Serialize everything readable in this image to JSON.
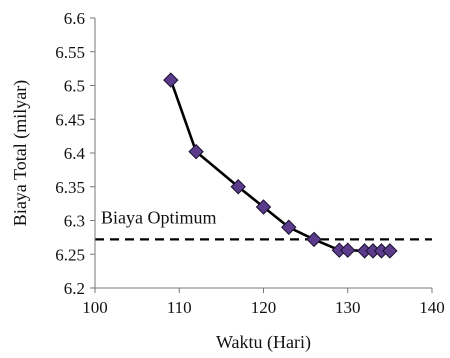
{
  "chart_data": {
    "type": "line",
    "title": "",
    "xlabel": "Waktu (Hari)",
    "ylabel": "Biaya Total (milyar)",
    "xlim": [
      100,
      140
    ],
    "ylim": [
      6.2,
      6.6
    ],
    "x_ticks": [
      "100",
      "110",
      "120",
      "130",
      "140"
    ],
    "y_ticks": [
      "6.2",
      "6.25",
      "6.3",
      "6.35",
      "6.4",
      "6.45",
      "6.5",
      "6.55",
      "6.6"
    ],
    "grid": false,
    "legend": "none",
    "series": [
      {
        "marker": "diamond",
        "marker_color": "#5b3c8a",
        "line_color": "#000000",
        "points": [
          {
            "x": 109,
            "y": 6.508
          },
          {
            "x": 112,
            "y": 6.402
          },
          {
            "x": 117,
            "y": 6.35
          },
          {
            "x": 120,
            "y": 6.32
          },
          {
            "x": 123,
            "y": 6.29
          },
          {
            "x": 126,
            "y": 6.272
          },
          {
            "x": 129,
            "y": 6.256
          },
          {
            "x": 130,
            "y": 6.256
          },
          {
            "x": 132,
            "y": 6.255
          },
          {
            "x": 133,
            "y": 6.255
          },
          {
            "x": 134,
            "y": 6.255
          },
          {
            "x": 135,
            "y": 6.255
          }
        ]
      }
    ],
    "reference_line": {
      "y": 6.272,
      "style": "dashed",
      "color": "#000000"
    },
    "annotation": {
      "text": "Biaya Optimum"
    }
  }
}
